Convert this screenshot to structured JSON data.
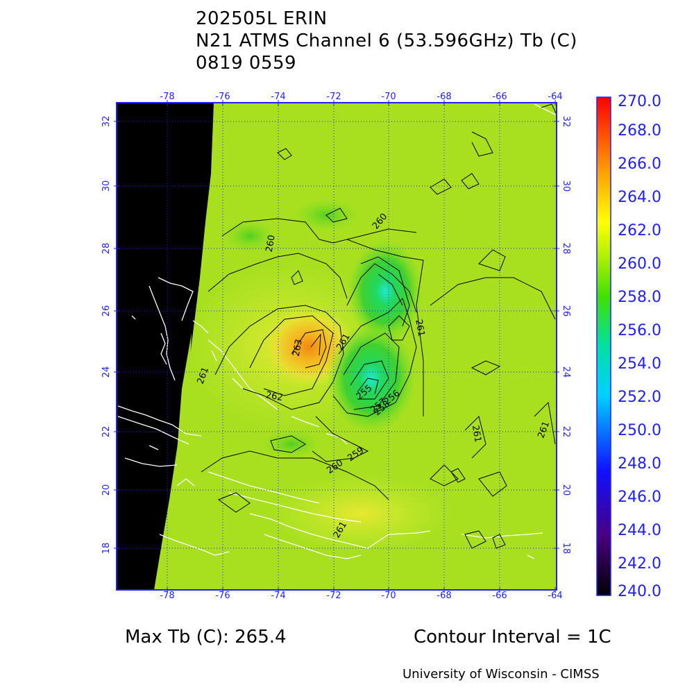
{
  "header": {
    "storm_id": "202505L ERIN",
    "product": "N21 ATMS Channel 6 (53.596GHz) Tb (C)",
    "datetime": "0819 0559"
  },
  "map": {
    "lon_ticks": [
      "-78",
      "-76",
      "-74",
      "-72",
      "-70",
      "-68",
      "-66",
      "-64"
    ],
    "lat_ticks": [
      "32",
      "30",
      "28",
      "26",
      "24",
      "22",
      "20",
      "18"
    ],
    "contour_labels": [
      "260",
      "260",
      "261",
      "263",
      "261",
      "262",
      "261",
      "261",
      "261",
      "260",
      "259",
      "257",
      "256",
      "255",
      "258",
      "261"
    ]
  },
  "colorbar": {
    "labels": [
      "270.0",
      "268.0",
      "266.0",
      "264.0",
      "262.0",
      "260.0",
      "258.0",
      "256.0",
      "254.0",
      "252.0",
      "250.0",
      "248.0",
      "246.0",
      "244.0",
      "242.0",
      "240.0"
    ],
    "colors": {
      "high": "#ff0000",
      "mid": "#80e000",
      "low": "#000000",
      "axis": "#2020ff"
    }
  },
  "footer": {
    "max_tb": "Max Tb (C): 265.4",
    "contour_interval": "Contour Interval = 1C",
    "credit": "University of Wisconsin - CIMSS"
  }
}
